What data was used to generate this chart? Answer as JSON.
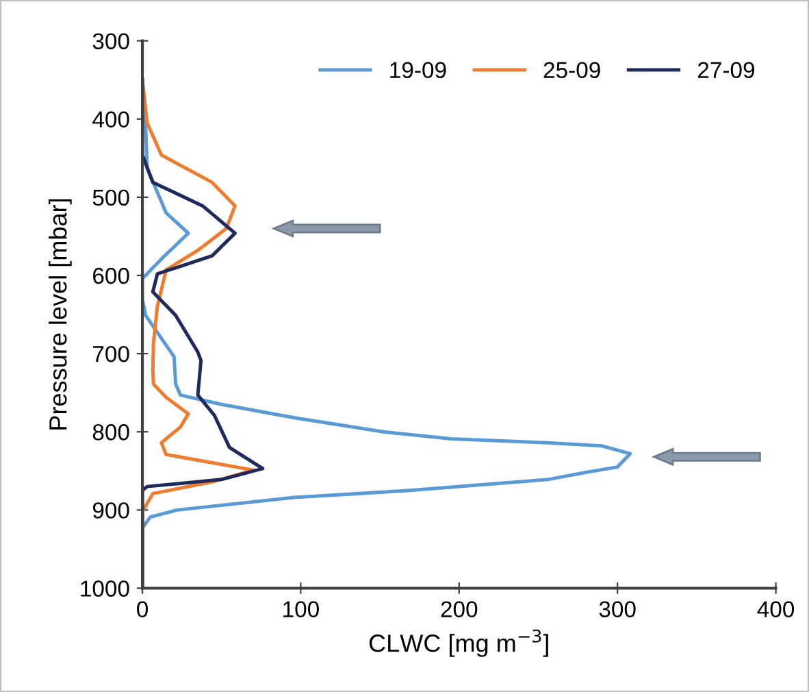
{
  "chart_data": {
    "type": "line",
    "xlabel": "CLWC [mg m$^{−3}$]",
    "ylabel": "Pressure level [mbar]",
    "xlim": [
      0,
      400
    ],
    "xticks": [
      0,
      100,
      200,
      300,
      400
    ],
    "ylim": [
      1000,
      300
    ],
    "yticks": [
      300,
      400,
      500,
      600,
      700,
      800,
      900,
      1000
    ],
    "grid": false,
    "legend": "top right",
    "marker": "none",
    "line_style": "solid",
    "series": [
      {
        "name": "19-09",
        "color": "#5b9bd5",
        "x": [
          0,
          2,
          3,
          15,
          29,
          14,
          0,
          0,
          2,
          20,
          21,
          24,
          50,
          96,
          152,
          195,
          256,
          290,
          308,
          300,
          280,
          256,
          169,
          96,
          22,
          5,
          0,
          0
        ],
        "values": [
          350,
          405,
          463,
          520,
          546,
          575,
          604,
          630,
          651,
          704,
          739,
          753,
          765,
          782,
          800,
          809,
          814,
          818,
          828,
          845,
          852,
          861,
          875,
          884,
          900,
          909,
          923,
          1000
        ]
      },
      {
        "name": "25-09",
        "color": "#ed7d31",
        "x": [
          0,
          3,
          12,
          44,
          58.5,
          53,
          35,
          15,
          9.5,
          7,
          6.6,
          7,
          15,
          29,
          24,
          12,
          15,
          70,
          44,
          6.6,
          0,
          0
        ],
        "values": [
          350,
          405,
          446,
          481,
          511,
          540,
          568,
          593,
          639,
          686,
          721,
          739,
          756,
          777,
          794,
          814,
          829,
          849,
          864,
          879,
          902,
          1000
        ]
      },
      {
        "name": "27-09",
        "color": "#1f2a5c",
        "x": [
          0,
          0,
          6.6,
          38,
          58.5,
          44,
          9.5,
          6.6,
          21,
          35,
          37,
          35,
          45.5,
          55,
          76,
          50,
          3,
          0,
          0
        ],
        "values": [
          350,
          446,
          481,
          511,
          546,
          575,
          598,
          621,
          651,
          698,
          709,
          753,
          779,
          820,
          847,
          861,
          870,
          875,
          1000
        ]
      }
    ]
  }
}
